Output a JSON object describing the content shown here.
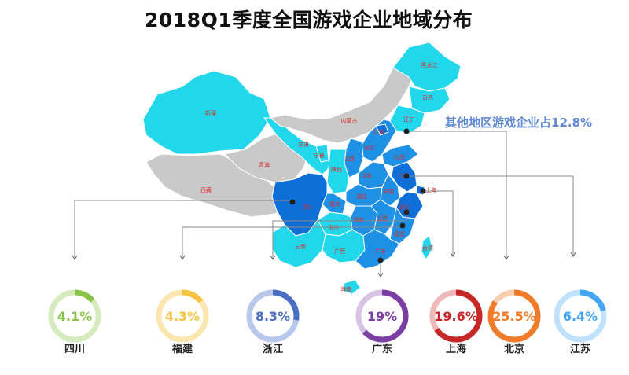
{
  "title": "2018Q1季度全国游戏企业地域分布",
  "others_note": "其他地区游戏企业占12.8%",
  "chart_data": {
    "type": "pie",
    "title": "2018Q1季度全国游戏企业地域分布",
    "unit": "%",
    "series": [
      {
        "name": "四川",
        "label": "4.1%",
        "value": 4.1,
        "color": "#8bc34a",
        "track": "#d6ebbd"
      },
      {
        "name": "福建",
        "label": "4.3%",
        "value": 4.3,
        "color": "#f5c242",
        "track": "#fbe6b0"
      },
      {
        "name": "浙江",
        "label": "8.3%",
        "value": 8.3,
        "color": "#4a6ec4",
        "track": "#b7c8ec"
      },
      {
        "name": "广东",
        "label": "19%",
        "value": 19,
        "color": "#7b3fa3",
        "track": "#d8c2e6"
      },
      {
        "name": "上海",
        "label": "19.6%",
        "value": 19.6,
        "color": "#c62828",
        "track": "#efb9b9"
      },
      {
        "name": "北京",
        "label": "25.5%",
        "value": 25.5,
        "color": "#ef7b2b",
        "track": "#f8cfae"
      },
      {
        "name": "江苏",
        "label": "6.4%",
        "value": 6.4,
        "color": "#42a5f5",
        "track": "#c0e1fb"
      }
    ],
    "others": {
      "label": "其他地区游戏企业占12.8%",
      "value": 12.8
    }
  },
  "map": {
    "provinces": [
      "黑龙江",
      "吉林",
      "辽宁",
      "内蒙古",
      "北京",
      "河北",
      "山西",
      "山东",
      "江苏",
      "上海",
      "浙江",
      "安徽",
      "河南",
      "湖北",
      "湖南",
      "江西",
      "福建",
      "广东",
      "广西",
      "海南",
      "贵州",
      "云南",
      "四川",
      "重庆",
      "陕西",
      "宁夏",
      "甘肃",
      "青海",
      "西藏",
      "新疆",
      "台湾"
    ],
    "colors": {
      "cyan": "#22d7ec",
      "blue": "#1e90e6",
      "deep": "#0f6fd8",
      "grey": "#c9c9c9",
      "border": "#ffffff"
    }
  }
}
